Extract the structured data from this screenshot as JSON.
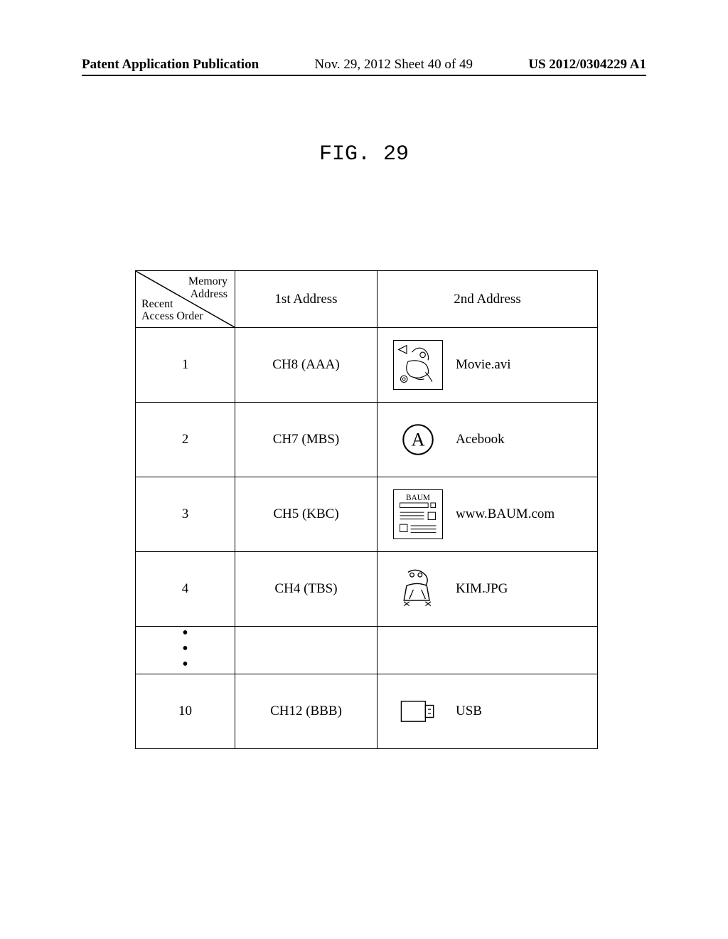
{
  "header": {
    "left": "Patent Application Publication",
    "center": "Nov. 29, 2012  Sheet 40 of 49",
    "right": "US 2012/0304229 A1"
  },
  "figure_title": "FIG. 29",
  "table": {
    "head": {
      "diag_top": "Memory\nAddress",
      "diag_bottom": "Recent\nAccess Order",
      "col1": "1st Address",
      "col2": "2nd Address"
    },
    "rows": [
      {
        "order": "1",
        "first": "CH8 (AAA)",
        "second_label": "Movie.avi",
        "icon": "movie"
      },
      {
        "order": "2",
        "first": "CH7 (MBS)",
        "second_label": "Acebook",
        "icon": "acebook"
      },
      {
        "order": "3",
        "first": "CH5 (KBC)",
        "second_label": "www.BAUM.com",
        "icon": "baum"
      },
      {
        "order": "4",
        "first": "CH4 (TBS)",
        "second_label": "KIM.JPG",
        "icon": "photo"
      },
      {
        "order": "⋮",
        "first": "",
        "second_label": "",
        "icon": "none"
      },
      {
        "order": "10",
        "first": "CH12 (BBB)",
        "second_label": "USB",
        "icon": "usb"
      }
    ]
  }
}
